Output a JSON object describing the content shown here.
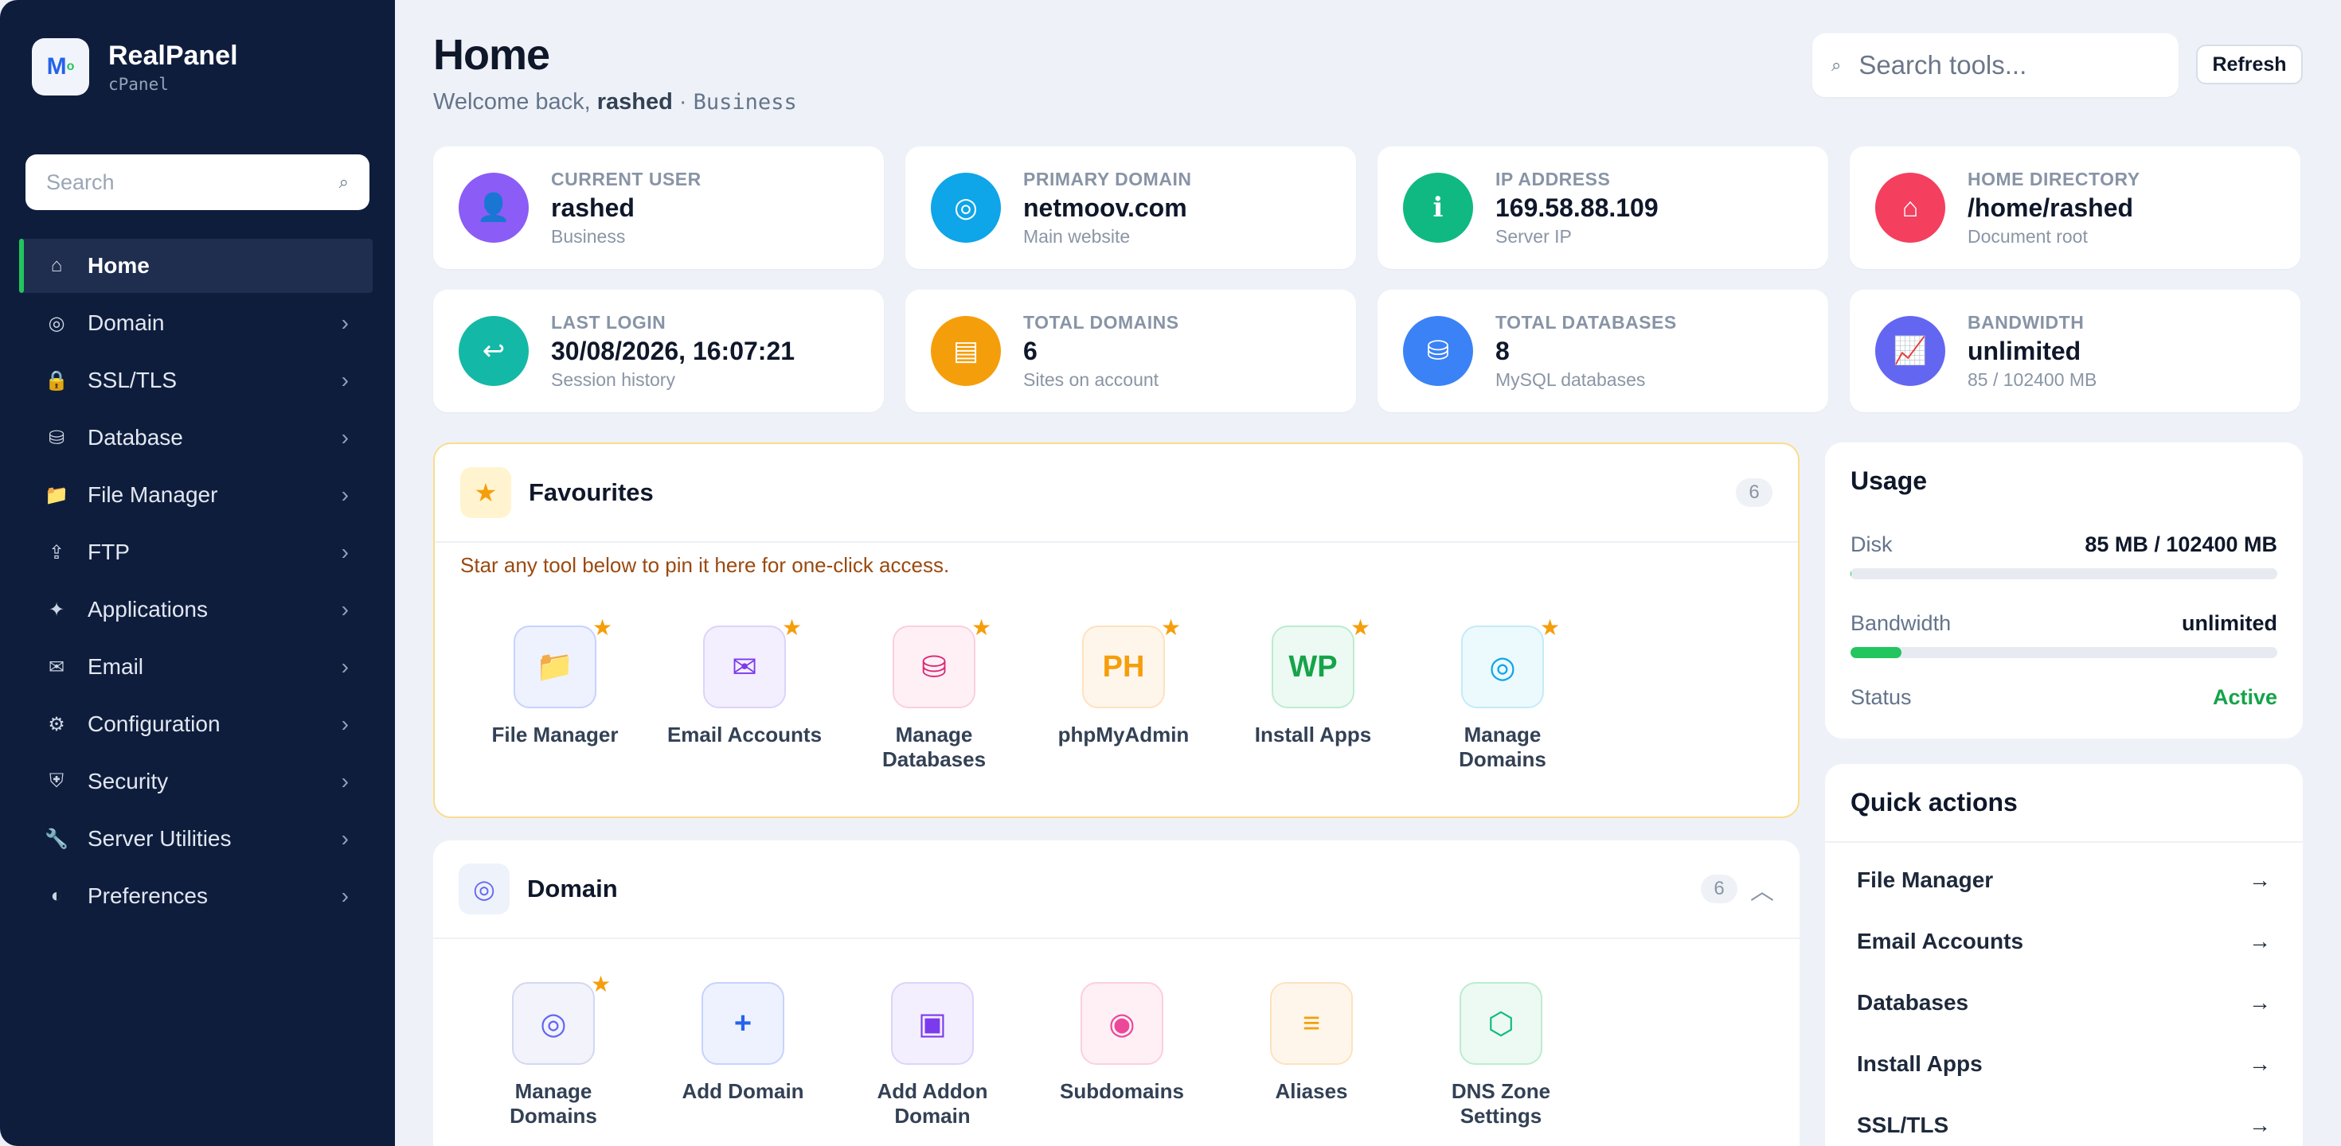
{
  "brand": {
    "name": "RealPanel",
    "sub": "cPanel",
    "logo": "M"
  },
  "sidebar": {
    "search_placeholder": "Search",
    "items": [
      {
        "label": "Home",
        "icon": "home-icon",
        "glyph": "⌂",
        "active": true
      },
      {
        "label": "Domain",
        "icon": "globe-icon",
        "glyph": "◎"
      },
      {
        "label": "SSL/TLS",
        "icon": "lock-icon",
        "glyph": "🔒"
      },
      {
        "label": "Database",
        "icon": "database-icon",
        "glyph": "⛁"
      },
      {
        "label": "File Manager",
        "icon": "folder-icon",
        "glyph": "📁"
      },
      {
        "label": "FTP",
        "icon": "ftp-icon",
        "glyph": "⇪"
      },
      {
        "label": "Applications",
        "icon": "sparkle-icon",
        "glyph": "✦"
      },
      {
        "label": "Email",
        "icon": "mail-icon",
        "glyph": "✉"
      },
      {
        "label": "Configuration",
        "icon": "gear-icon",
        "glyph": "⚙"
      },
      {
        "label": "Security",
        "icon": "shield-icon",
        "glyph": "⛨"
      },
      {
        "label": "Server Utilities",
        "icon": "wrench-icon",
        "glyph": "🔧"
      },
      {
        "label": "Preferences",
        "icon": "contrast-icon",
        "glyph": "◐"
      }
    ]
  },
  "header": {
    "title": "Home",
    "welcome_prefix": "Welcome back, ",
    "username": "rashed",
    "separator": " · ",
    "plan": "Business",
    "search_placeholder": "Search tools...",
    "refresh_label": "Refresh"
  },
  "stats": [
    {
      "label": "CURRENT USER",
      "value": "rashed",
      "sub": "Business",
      "color": "#8b5cf6",
      "glyph": "👤"
    },
    {
      "label": "PRIMARY DOMAIN",
      "value": "netmoov.com",
      "sub": "Main website",
      "color": "#0ea5e9",
      "glyph": "◎"
    },
    {
      "label": "IP ADDRESS",
      "value": "169.58.88.109",
      "sub": "Server IP",
      "color": "#10b981",
      "glyph": "ℹ"
    },
    {
      "label": "HOME DIRECTORY",
      "value": "/home/rashed",
      "sub": "Document root",
      "color": "#f43f5e",
      "glyph": "⌂"
    },
    {
      "label": "LAST LOGIN",
      "value": "30/08/2026, 16:07:21",
      "sub": "Session history",
      "color": "#14b8a6",
      "glyph": "↩"
    },
    {
      "label": "TOTAL DOMAINS",
      "value": "6",
      "sub": "Sites on account",
      "color": "#f59e0b",
      "glyph": "▤"
    },
    {
      "label": "TOTAL DATABASES",
      "value": "8",
      "sub": "MySQL databases",
      "color": "#3b82f6",
      "glyph": "⛁"
    },
    {
      "label": "BANDWIDTH",
      "value": "unlimited",
      "sub": "85 / 102400 MB",
      "color": "#6366f1",
      "glyph": "📈"
    }
  ],
  "favourites": {
    "title": "Favourites",
    "count": "6",
    "hint": "Star any tool below to pin it here for one-click access.",
    "tiles": [
      {
        "label": "File Manager",
        "glyph": "📁",
        "bg": "#eef2ff",
        "border": "#c7d2fe",
        "fg": "#64748b"
      },
      {
        "label": "Email Accounts",
        "glyph": "✉",
        "bg": "#f3efff",
        "border": "#ddd3fb",
        "fg": "#7c3aed"
      },
      {
        "label": "Manage Databases",
        "glyph": "⛁",
        "bg": "#fff0f5",
        "border": "#fbcfe0",
        "fg": "#db2777"
      },
      {
        "label": "phpMyAdmin",
        "glyph": "PH",
        "bg": "#fff6eb",
        "border": "#fde2bf",
        "fg": "#f59e0b"
      },
      {
        "label": "Install Apps",
        "glyph": "WP",
        "bg": "#ecfaf3",
        "border": "#bdeccf",
        "fg": "#16a34a"
      },
      {
        "label": "Manage Domains",
        "glyph": "◎",
        "bg": "#ecf9fd",
        "border": "#c3ecf7",
        "fg": "#0ea5e9"
      }
    ]
  },
  "domain_section": {
    "title": "Domain",
    "count": "6",
    "tiles": [
      {
        "label": "Manage Domains",
        "glyph": "◎",
        "bg": "#f2f3fb",
        "border": "#d3d8f0",
        "fg": "#6366f1",
        "starred": true
      },
      {
        "label": "Add Domain",
        "glyph": "+",
        "bg": "#eef2ff",
        "border": "#c7d2fe",
        "fg": "#2563eb"
      },
      {
        "label": "Add Addon Domain",
        "glyph": "▣",
        "bg": "#f3efff",
        "border": "#ddd3fb",
        "fg": "#7c3aed"
      },
      {
        "label": "Subdomains",
        "glyph": "◉",
        "bg": "#fff0f5",
        "border": "#fbcfe0",
        "fg": "#ec4899"
      },
      {
        "label": "Aliases",
        "glyph": "≡",
        "bg": "#fff6eb",
        "border": "#fde2bf",
        "fg": "#f59e0b"
      },
      {
        "label": "DNS Zone Settings",
        "glyph": "⬡",
        "bg": "#ecfaf3",
        "border": "#bdeccf",
        "fg": "#10b981"
      }
    ]
  },
  "usage": {
    "title": "Usage",
    "disk_label": "Disk",
    "disk_value": "85 MB / 102400 MB",
    "disk_fraction": 0.0008,
    "bandwidth_label": "Bandwidth",
    "bandwidth_value": "unlimited",
    "bandwidth_fraction": 0.12,
    "status_label": "Status",
    "status_value": "Active"
  },
  "quick_actions": {
    "title": "Quick actions",
    "items": [
      "File Manager",
      "Email Accounts",
      "Databases",
      "Install Apps",
      "SSL/TLS"
    ]
  }
}
